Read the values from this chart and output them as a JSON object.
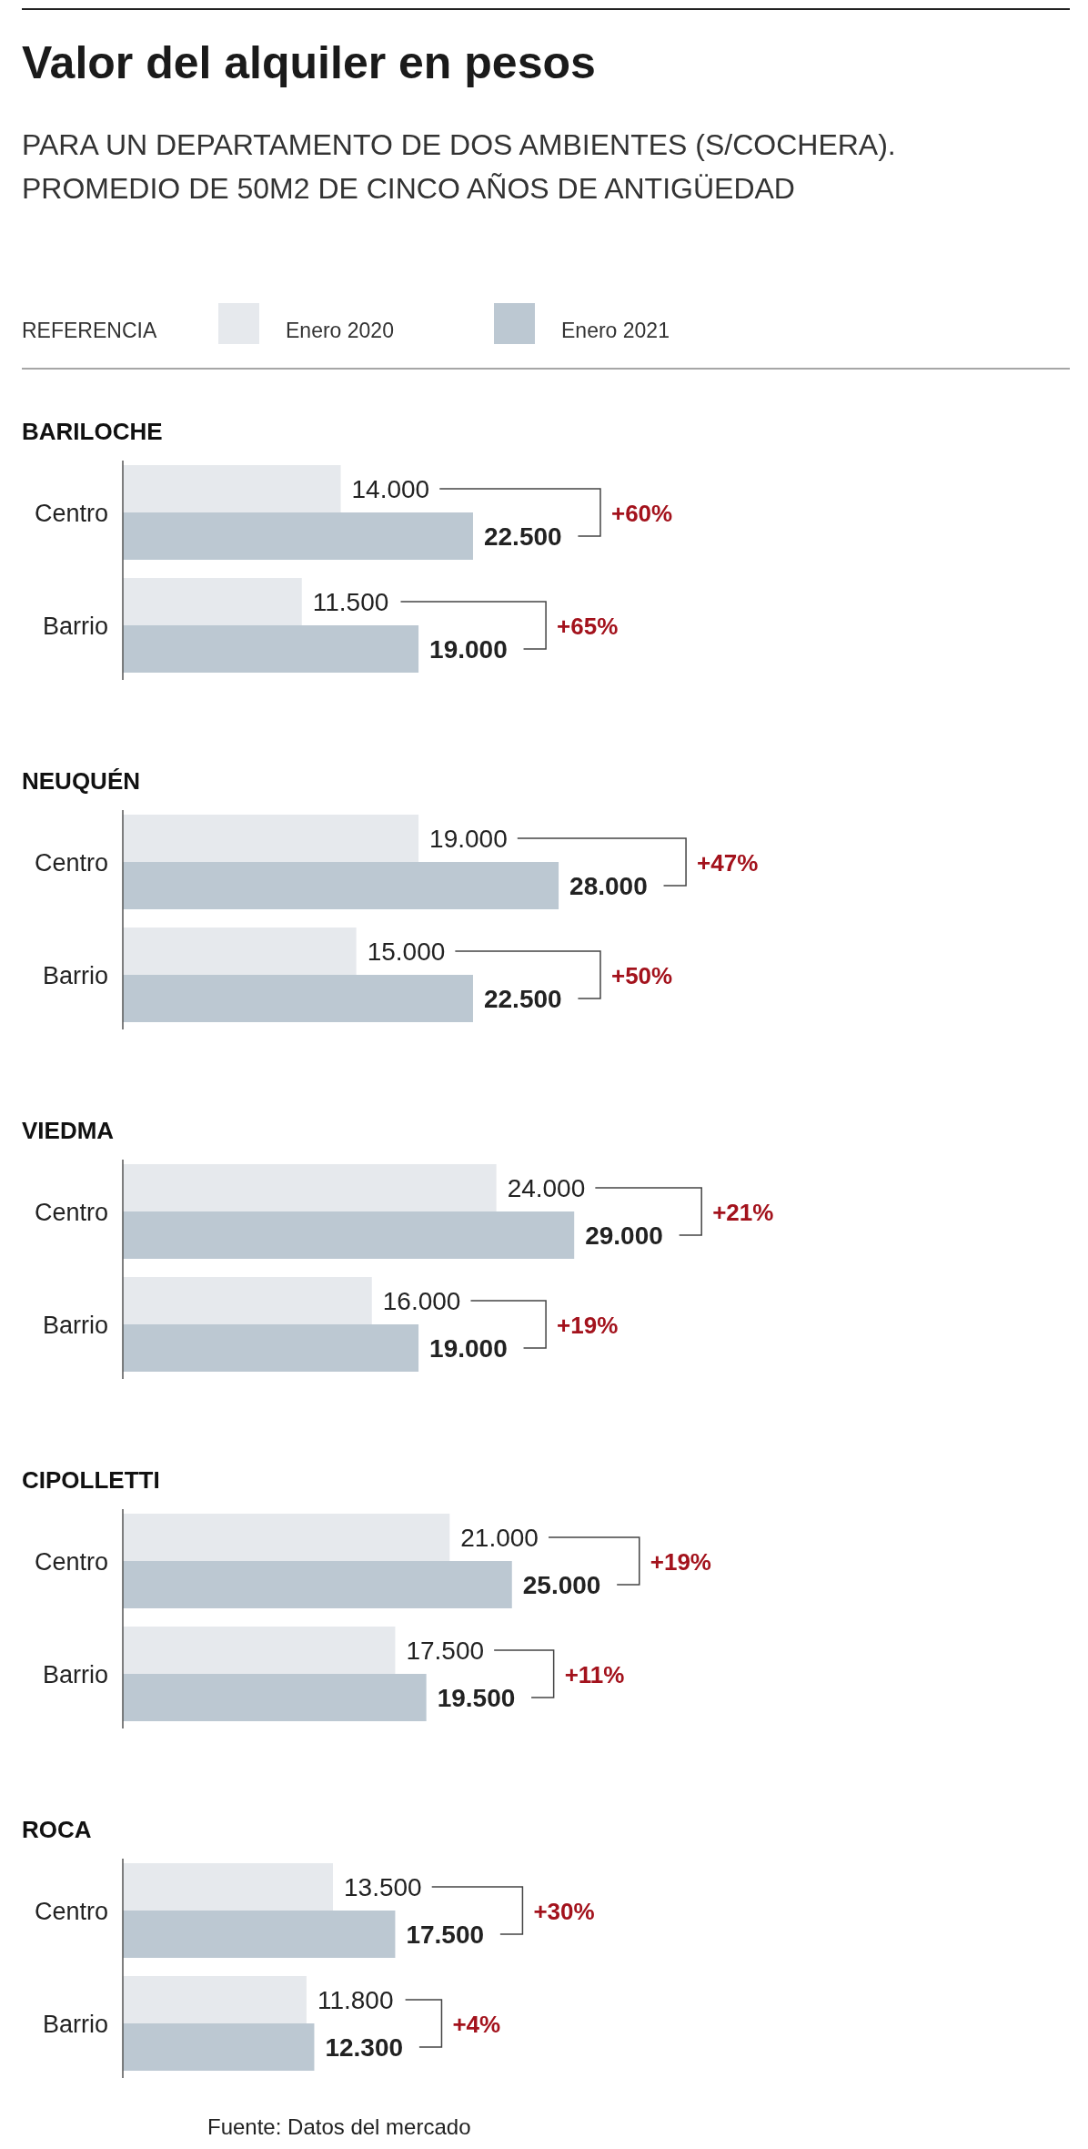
{
  "chart_data": [
    {
      "type": "bar",
      "orientation": "horizontal",
      "title": "Valor del alquiler en pesos",
      "subtitle": "PARA UN DEPARTAMENTO DE DOS AMBIENTES (S/COCHERA).\nPROMEDIO DE 50M2 DE CINCO AÑOS DE ANTIGÜEDAD",
      "legend_title": "REFERENCIA",
      "legend": "top",
      "categories": [
        "Centro",
        "Barrio"
      ],
      "series": [
        {
          "name": "Enero 2020",
          "color": "#e6e9ed",
          "values": [
            14000,
            11500
          ],
          "value_labels": [
            "14.000",
            "11.500"
          ]
        },
        {
          "name": "Enero 2021",
          "color": "#bcc8d2",
          "values": [
            22500,
            19000
          ],
          "value_labels": [
            "22.500",
            "19.000"
          ]
        }
      ],
      "annotations": [
        "BARILOCHE",
        "+60%",
        "+65%"
      ]
    },
    {
      "type": "bar",
      "orientation": "horizontal",
      "categories": [
        "Centro",
        "Barrio"
      ],
      "series": [
        {
          "color": "#e6e9ed",
          "values": [
            19000,
            15000
          ],
          "value_labels": [
            "19.000",
            "15.000"
          ]
        },
        {
          "color": "#bcc8d2",
          "values": [
            28000,
            22500
          ],
          "value_labels": [
            "28.000",
            "22.500"
          ]
        }
      ],
      "annotations": [
        "NEUQUÉN",
        "+47%",
        "+50%"
      ]
    },
    {
      "type": "bar",
      "orientation": "horizontal",
      "categories": [
        "Centro",
        "Barrio"
      ],
      "series": [
        {
          "color": "#e6e9ed",
          "values": [
            24000,
            16000
          ],
          "value_labels": [
            "24.000",
            "16.000"
          ]
        },
        {
          "color": "#bcc8d2",
          "values": [
            29000,
            19000
          ],
          "value_labels": [
            "29.000",
            "19.000"
          ]
        }
      ],
      "annotations": [
        "VIEDMA",
        "+21%",
        "+19%"
      ]
    },
    {
      "type": "bar",
      "orientation": "horizontal",
      "categories": [
        "Centro",
        "Barrio"
      ],
      "series": [
        {
          "color": "#e6e9ed",
          "values": [
            21000,
            17500
          ],
          "value_labels": [
            "21.000",
            "17.500"
          ]
        },
        {
          "color": "#bcc8d2",
          "values": [
            25000,
            19500
          ],
          "value_labels": [
            "25.000",
            "19.500"
          ]
        }
      ],
      "annotations": [
        "CIPOLLETTI",
        "+19%",
        "+11%"
      ]
    },
    {
      "type": "bar",
      "orientation": "horizontal",
      "categories": [
        "Centro",
        "Barrio"
      ],
      "series": [
        {
          "color": "#e6e9ed",
          "values": [
            13500,
            11800
          ],
          "value_labels": [
            "13.500",
            "11.800"
          ]
        },
        {
          "color": "#bcc8d2",
          "values": [
            17500,
            12300
          ],
          "value_labels": [
            "17.500",
            "12.300"
          ]
        }
      ],
      "annotations": [
        "ROCA",
        "+30%",
        "+4%",
        "Fuente: Datos del mercado"
      ]
    }
  ]
}
